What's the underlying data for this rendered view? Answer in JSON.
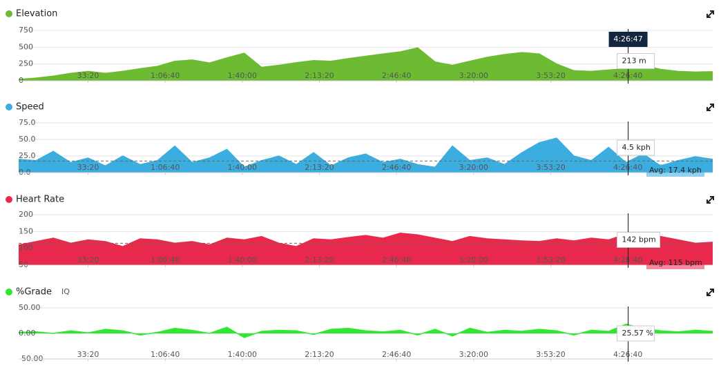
{
  "chart_data": [
    {
      "type": "area",
      "title": "Elevation",
      "color": "#6cbb32",
      "x": [
        200,
        650,
        1100,
        1550,
        2000,
        2450,
        2900,
        3350,
        3800,
        4250,
        4700,
        5150,
        5600,
        6050,
        6500,
        6950,
        7400,
        7850,
        8300,
        8750,
        9200,
        9650,
        10100,
        10550,
        11000,
        11450,
        11900,
        12350,
        12800,
        13250,
        13700,
        14150,
        14600,
        15050,
        15500,
        15950,
        16400,
        16850,
        17300,
        17750,
        18200
      ],
      "values": [
        20,
        40,
        70,
        110,
        140,
        110,
        140,
        180,
        215,
        290,
        310,
        265,
        340,
        410,
        200,
        230,
        270,
        300,
        290,
        330,
        365,
        400,
        430,
        490,
        280,
        230,
        290,
        350,
        390,
        420,
        400,
        250,
        150,
        140,
        160,
        180,
        230,
        170,
        140,
        130,
        135
      ],
      "xlim": [
        200,
        18200
      ],
      "xticks": [
        {
          "value": 2000,
          "label": "33:20"
        },
        {
          "value": 4000,
          "label": "1:06:40"
        },
        {
          "value": 6000,
          "label": "1:40:00"
        },
        {
          "value": 8000,
          "label": "2:13:20"
        },
        {
          "value": 10000,
          "label": "2:46:40"
        },
        {
          "value": 12000,
          "label": "3:20:00"
        },
        {
          "value": 14000,
          "label": "3:53:20"
        },
        {
          "value": 16000,
          "label": "4:26:40"
        }
      ],
      "ylim": [
        0,
        750
      ],
      "yticks": [
        0,
        250,
        500,
        750
      ],
      "grid": true,
      "cursor": {
        "value": 16007,
        "label": "4:26:47"
      },
      "tooltip": "213 m"
    },
    {
      "type": "area",
      "title": "Speed",
      "color": "#3badde",
      "x": [
        200,
        650,
        1100,
        1550,
        2000,
        2450,
        2900,
        3350,
        3800,
        4250,
        4700,
        5150,
        5600,
        6050,
        6500,
        6950,
        7400,
        7850,
        8300,
        8750,
        9200,
        9650,
        10100,
        10550,
        11000,
        11450,
        11900,
        12350,
        12800,
        13250,
        13700,
        14150,
        14600,
        15050,
        15500,
        15950,
        16400,
        16850,
        17300,
        17750,
        18200
      ],
      "values": [
        20,
        18,
        32,
        15,
        22,
        10,
        25,
        12,
        18,
        40,
        15,
        22,
        35,
        8,
        18,
        25,
        12,
        30,
        10,
        22,
        28,
        15,
        20,
        12,
        8,
        40,
        18,
        22,
        12,
        30,
        45,
        52,
        25,
        18,
        38,
        15,
        28,
        10,
        18,
        24,
        20
      ],
      "xlim": [
        200,
        18200
      ],
      "xticks": [
        {
          "value": 2000,
          "label": "33:20"
        },
        {
          "value": 4000,
          "label": "1:06:40"
        },
        {
          "value": 6000,
          "label": "1:40:00"
        },
        {
          "value": 8000,
          "label": "2:13:20"
        },
        {
          "value": 10000,
          "label": "2:46:40"
        },
        {
          "value": 12000,
          "label": "3:20:00"
        },
        {
          "value": 14000,
          "label": "3:53:20"
        },
        {
          "value": 16000,
          "label": "4:26:40"
        }
      ],
      "ylim": [
        0,
        75
      ],
      "yticks": [
        {
          "value": 0,
          "label": "0.0"
        },
        {
          "value": 25,
          "label": "25.0"
        },
        {
          "value": 50,
          "label": "50.0"
        },
        {
          "value": 75,
          "label": "75.0"
        }
      ],
      "grid": true,
      "average": {
        "value": 17.4,
        "label": "Avg: 17.4 kph"
      },
      "tooltip": "4.5 kph"
    },
    {
      "type": "area",
      "title": "Heart Rate",
      "color": "#e9294c",
      "x": [
        200,
        650,
        1100,
        1550,
        2000,
        2450,
        2900,
        3350,
        3800,
        4250,
        4700,
        5150,
        5600,
        6050,
        6500,
        6950,
        7400,
        7850,
        8300,
        8750,
        9200,
        9650,
        10100,
        10550,
        11000,
        11450,
        11900,
        12350,
        12800,
        13250,
        13700,
        14150,
        14600,
        15050,
        15500,
        15950,
        16400,
        16850,
        17300,
        17750,
        18200
      ],
      "values": [
        110,
        120,
        130,
        115,
        125,
        120,
        105,
        128,
        125,
        115,
        120,
        110,
        130,
        125,
        135,
        115,
        105,
        128,
        125,
        132,
        138,
        130,
        145,
        140,
        130,
        120,
        135,
        128,
        125,
        122,
        120,
        128,
        122,
        130,
        125,
        142,
        138,
        135,
        125,
        115,
        118
      ],
      "xlim": [
        200,
        18200
      ],
      "xticks": [
        {
          "value": 2000,
          "label": "33:20"
        },
        {
          "value": 4000,
          "label": "1:06:40"
        },
        {
          "value": 6000,
          "label": "1:40:00"
        },
        {
          "value": 8000,
          "label": "2:13:20"
        },
        {
          "value": 10000,
          "label": "2:46:40"
        },
        {
          "value": 12000,
          "label": "3:20:00"
        },
        {
          "value": 14000,
          "label": "3:53:20"
        },
        {
          "value": 16000,
          "label": "4:26:40"
        }
      ],
      "ylim": [
        50,
        200
      ],
      "yticks": [
        50,
        100,
        150,
        200
      ],
      "grid": true,
      "average": {
        "value": 115,
        "label": "Avg: 115 bpm"
      },
      "tooltip": "142 bpm"
    },
    {
      "type": "area",
      "title": "%Grade",
      "badge": "IQ",
      "color": "#2ee82e",
      "x": [
        200,
        650,
        1100,
        1550,
        2000,
        2450,
        2900,
        3350,
        3800,
        4250,
        4700,
        5150,
        5600,
        6050,
        6500,
        6950,
        7400,
        7850,
        8300,
        8750,
        9200,
        9650,
        10100,
        10550,
        11000,
        11450,
        11900,
        12350,
        12800,
        13250,
        13700,
        14150,
        14600,
        15050,
        15500,
        15950,
        16400,
        16850,
        17300,
        17750,
        18200
      ],
      "values": [
        2,
        3,
        0,
        5,
        1,
        8,
        5,
        -3,
        2,
        10,
        6,
        0,
        12,
        -8,
        4,
        6,
        5,
        -2,
        8,
        10,
        5,
        3,
        6,
        -3,
        8,
        -5,
        10,
        2,
        6,
        4,
        8,
        5,
        -3,
        6,
        4,
        18,
        10,
        5,
        3,
        6,
        4
      ],
      "xlim": [
        200,
        18200
      ],
      "xticks": [
        {
          "value": 2000,
          "label": "33:20"
        },
        {
          "value": 4000,
          "label": "1:06:40"
        },
        {
          "value": 6000,
          "label": "1:40:00"
        },
        {
          "value": 8000,
          "label": "2:13:20"
        },
        {
          "value": 10000,
          "label": "2:46:40"
        },
        {
          "value": 12000,
          "label": "3:20:00"
        },
        {
          "value": 14000,
          "label": "3:53:20"
        },
        {
          "value": 16000,
          "label": "4:26:40"
        }
      ],
      "ylim": [
        -50,
        50
      ],
      "yticks": [
        {
          "value": -50,
          "label": "-50.00"
        },
        {
          "value": 0,
          "label": "0.00"
        },
        {
          "value": 50,
          "label": "50.00"
        }
      ],
      "grid": true,
      "tooltip": "25.57 %"
    }
  ]
}
